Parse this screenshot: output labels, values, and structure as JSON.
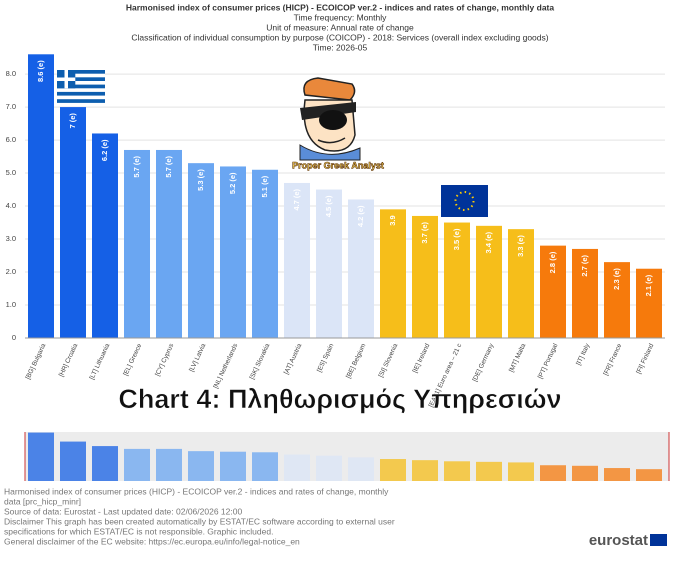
{
  "chart_data": {
    "type": "bar",
    "title": "Harmonised index of consumer prices (HICP) - ECOICOP ver.2 - indices and rates of change, monthly data",
    "subtitle": [
      "Time frequency:  Monthly",
      "Unit of measure:  Annual rate of change",
      "Classification of individual consumption by purpose (COICOP) - 2018:  Services (overall index excluding goods)",
      "Time:  2026-05"
    ],
    "categories": [
      "[BG] Bulgaria",
      "[HR] Croatia",
      "[LT] Lithuania",
      "[EL] Greece",
      "[CY] Cyprus",
      "[LV] Latvia",
      "[NL] Netherlands",
      "[SK] Slovakia",
      "[AT] Austria",
      "[ES] Spain",
      "[BE] Belgium",
      "[SI] Slovenia",
      "[IE] Ireland",
      "[EA21] Euro area – 21 c",
      "[DE] Germany",
      "[MT] Malta",
      "[PT] Portugal",
      "[IT] Italy",
      "[FR] France",
      "[FI] Finland"
    ],
    "values": [
      8.6,
      7,
      6.2,
      5.7,
      5.7,
      5.3,
      5.2,
      5.1,
      4.7,
      4.5,
      4.2,
      3.9,
      3.7,
      3.5,
      3.4,
      3.3,
      2.8,
      2.7,
      2.3,
      2.1
    ],
    "value_labels": [
      "8.6 (e)",
      "7 (e)",
      "6.2 (e)",
      "5.7 (e)",
      "5.7 (e)",
      "5.3 (e)",
      "5.2 (e)",
      "5.1 (e)",
      "4.7 (e)",
      "4.5 (e)",
      "4.2 (e)",
      "3.9",
      "3.7 (e)",
      "3.5 (e)",
      "3.4 (e)",
      "3.3 (e)",
      "2.8 (e)",
      "2.7 (e)",
      "2.3 (e)",
      "2.1 (e)"
    ],
    "colors": [
      "#1560e6",
      "#1560e6",
      "#1560e6",
      "#6aa6f2",
      "#6aa6f2",
      "#6aa6f2",
      "#6aa6f2",
      "#6aa6f2",
      "#dbe5f7",
      "#dbe5f7",
      "#dbe5f7",
      "#f6be1a",
      "#f6be1a",
      "#f6be1a",
      "#f6be1a",
      "#f6be1a",
      "#f67a0c",
      "#f67a0c",
      "#f67a0c",
      "#f67a0c"
    ],
    "ylim": [
      0,
      8.7
    ],
    "yticks": [
      0,
      {
        "value": 1,
        "label": "1.0"
      },
      {
        "value": 2,
        "label": "2.0"
      },
      {
        "value": 3,
        "label": "3.0"
      },
      {
        "value": 4,
        "label": "4.0"
      },
      {
        "value": 5,
        "label": "5.0"
      },
      {
        "value": 6,
        "label": "6.0"
      },
      {
        "value": 7,
        "label": "7.0"
      },
      {
        "value": 8,
        "label": "8.0"
      }
    ],
    "grid": true,
    "annotations": [
      "Chart 4: Πληθωρισμός Υπηρεσιών",
      "Proper Greek Analyst"
    ]
  },
  "footer": [
    "Harmonised index of consumer prices (HICP) - ECOICOP ver.2 - indices and rates of change, monthly",
    "data [prc_hicp_minr]",
    "Source of data: Eurostat - Last updated date: 02/06/2026 12:00",
    "Disclaimer This graph has been created automatically by ESTAT/EC software according to external user",
    "specifications for which ESTAT/EC is not responsible. Graphic included.",
    "General disclaimer of the EC website: https://ec.europa.eu/info/legal-notice_en"
  ],
  "logo": "eurostat"
}
